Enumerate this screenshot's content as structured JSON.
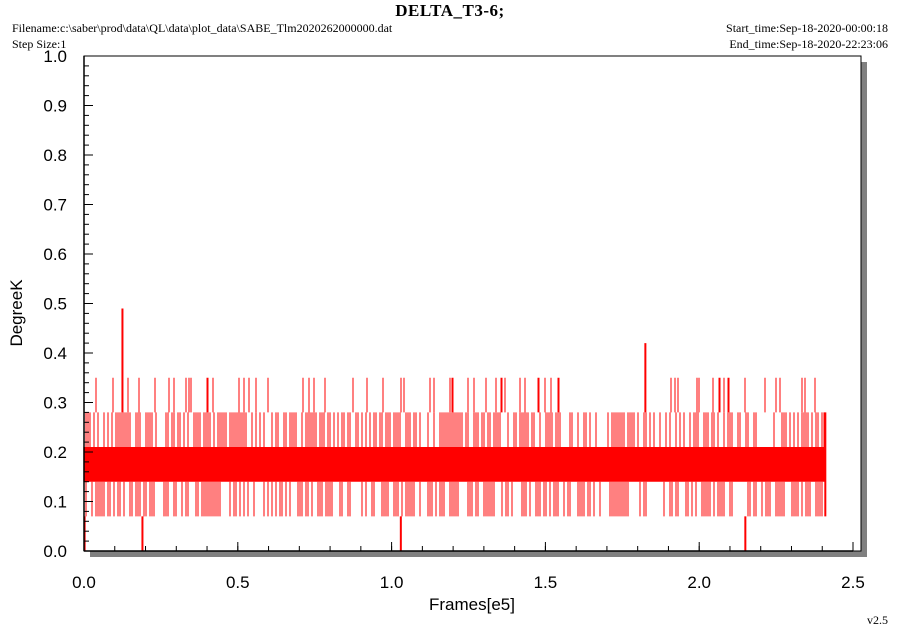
{
  "header": {
    "title": "DELTA_T3-6;",
    "filename": "Filename:c:\\saber\\prod\\data\\QL\\data\\plot_data\\SABE_Tlm2020262000000.dat",
    "step_size": "Step Size:1",
    "start_time": "Start_time:Sep-18-2020-00:00:18",
    "end_time": "End_time:Sep-18-2020-22:23:06"
  },
  "footer": {
    "version": "v2.5"
  },
  "colors": {
    "series": "#ff0000",
    "shadow": "#808080",
    "frame": "#000000",
    "background": "#ffffff"
  },
  "chart_data": {
    "type": "line",
    "title": "DELTA_T3-6;",
    "xlabel": "Frames[e5]",
    "ylabel": "DegreeK",
    "xlim": [
      0.0,
      2.5
    ],
    "ylim": [
      0.0,
      1.0
    ],
    "x_ticks": [
      "0.0",
      "0.5",
      "1.0",
      "1.5",
      "2.0",
      "2.5"
    ],
    "y_ticks": [
      "0.0",
      "0.1",
      "0.2",
      "0.3",
      "0.4",
      "0.5",
      "0.6",
      "0.7",
      "0.8",
      "0.9",
      "1.0"
    ],
    "grid": false,
    "series": [
      {
        "color": "#ff0000",
        "x_range": [
          0.0,
          2.41
        ],
        "levels": [
          0.07,
          0.14,
          0.21,
          0.28,
          0.35
        ],
        "main_band": [
          0.14,
          0.21
        ],
        "outer_band": [
          0.07,
          0.28
        ],
        "spikes": [
          {
            "x": 0.125,
            "y": 0.49
          },
          {
            "x": 1.825,
            "y": 0.42
          },
          {
            "x": 0.19,
            "y": 0.0
          },
          {
            "x": 1.03,
            "y": 0.0
          },
          {
            "x": 2.15,
            "y": 0.0
          },
          {
            "x": 0.002,
            "y": 0.0
          }
        ],
        "x_max": 2.41
      }
    ]
  }
}
